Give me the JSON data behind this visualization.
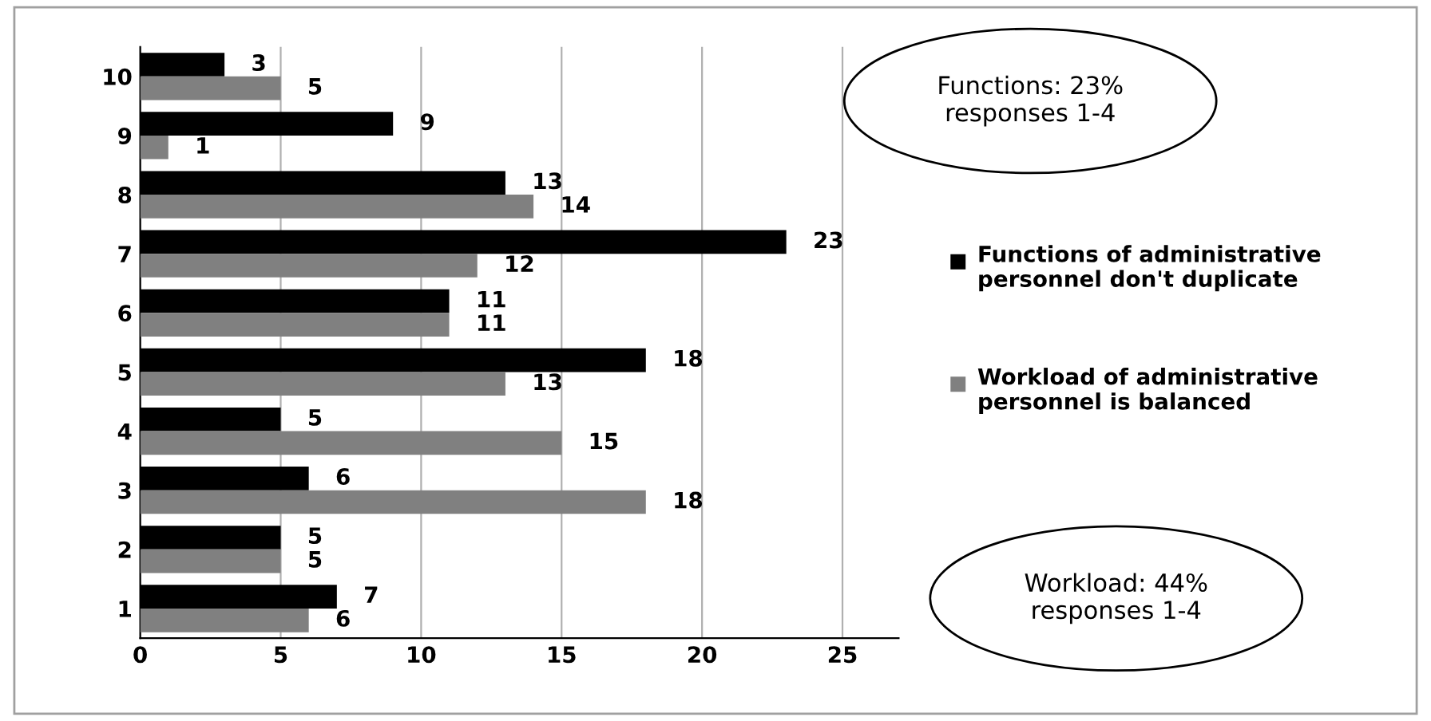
{
  "chart_data": {
    "type": "bar",
    "orientation": "horizontal",
    "categories": [
      "10",
      "9",
      "8",
      "7",
      "6",
      "5",
      "4",
      "3",
      "2",
      "1"
    ],
    "series": [
      {
        "name": "Functions of administrative personnel don't duplicate",
        "color": "#000000",
        "values": [
          3,
          9,
          13,
          23,
          11,
          18,
          5,
          6,
          5,
          7
        ]
      },
      {
        "name": "Workload of administrative personnel is balanced",
        "color": "#808080",
        "values": [
          5,
          1,
          14,
          12,
          11,
          13,
          15,
          18,
          5,
          6
        ]
      }
    ],
    "xlim": [
      0,
      27
    ],
    "xticks": [
      0,
      5,
      10,
      15,
      20,
      25
    ],
    "grid": "x",
    "legend": "right",
    "data_labels": true,
    "annotations": [
      "Functions: 23%\nresponses 1-4",
      "Workload: 44%\nresponses 1-4"
    ]
  }
}
